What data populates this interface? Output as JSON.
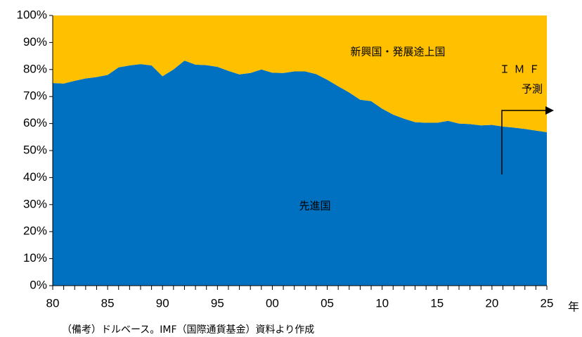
{
  "chart_data": {
    "type": "stacked_area",
    "x_label": "年",
    "note": "（備考）ドルベース。IMF（国際通貨基金）資料より作成",
    "annotations": [
      "新興国・発展途上国",
      "先進国",
      "ＩＭＦ",
      "予測"
    ],
    "categories": [
      "80",
      null,
      null,
      null,
      null,
      "85",
      null,
      null,
      null,
      null,
      "90",
      null,
      null,
      null,
      null,
      "95",
      null,
      null,
      null,
      null,
      "00",
      null,
      null,
      null,
      null,
      "05",
      null,
      null,
      null,
      null,
      "10",
      null,
      null,
      null,
      null,
      "15",
      null,
      null,
      null,
      null,
      "20",
      null,
      null,
      null,
      null,
      "25"
    ],
    "series": [
      {
        "name": "先進国",
        "color": "#0070c0",
        "values": [
          75,
          74.8,
          75.8,
          76.7,
          77.2,
          78,
          80.8,
          81.5,
          82,
          81.5,
          77.5,
          80,
          83.3,
          81.8,
          81.6,
          81,
          79.5,
          78.2,
          78.7,
          80,
          78.8,
          78.7,
          79.3,
          79.3,
          78.3,
          76.2,
          73.8,
          71.5,
          68.8,
          68.3,
          65.5,
          63.3,
          61.8,
          60.5,
          60.3,
          60.3,
          61,
          60,
          59.8,
          59.3,
          59.5,
          58.9,
          58.5,
          58,
          57.4,
          56.8
        ]
      },
      {
        "name": "新興国・発展途上国",
        "color": "#ffc000",
        "values": [
          25,
          25.2,
          24.2,
          23.3,
          22.8,
          22,
          19.2,
          18.5,
          18,
          18.5,
          22.5,
          20,
          16.7,
          18.2,
          18.4,
          19,
          20.5,
          21.8,
          21.3,
          20,
          21.2,
          21.3,
          20.7,
          20.7,
          21.7,
          23.8,
          26.2,
          28.5,
          31.2,
          31.7,
          34.5,
          36.7,
          38.2,
          39.5,
          39.7,
          39.7,
          39,
          40,
          40.2,
          40.7,
          40.5,
          41.1,
          41.5,
          42,
          42.6,
          43.2
        ]
      }
    ],
    "ylim": [
      0,
      100
    ],
    "yticks": [
      {
        "value": 0,
        "label": "0%"
      },
      {
        "value": 10,
        "label": "10%"
      },
      {
        "value": 20,
        "label": "20%"
      },
      {
        "value": 30,
        "label": "30%"
      },
      {
        "value": 40,
        "label": "40%"
      },
      {
        "value": 50,
        "label": "50%"
      },
      {
        "value": 60,
        "label": "60%"
      },
      {
        "value": 70,
        "label": "70%"
      },
      {
        "value": 80,
        "label": "80%"
      },
      {
        "value": 90,
        "label": "90%"
      },
      {
        "value": 100,
        "label": "100%"
      }
    ]
  }
}
